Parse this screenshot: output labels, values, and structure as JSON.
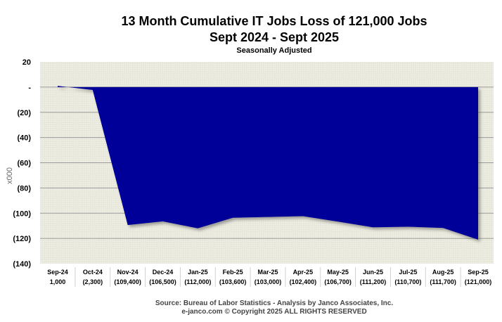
{
  "chart_data": {
    "type": "area",
    "title": "13 Month Cumulative IT Jobs Loss of 121,000 Jobs",
    "subtitle": "Sept 2024 - Sept 2025",
    "subtitle2": "Seasonally  Adjusted",
    "xlabel": "",
    "ylabel": "x000",
    "ylim": [
      -140,
      20
    ],
    "yticks": [
      20,
      0,
      -20,
      -40,
      -60,
      -80,
      -100,
      -120,
      -140
    ],
    "ytick_labels": [
      "20",
      "-",
      "(20)",
      "(40)",
      "(60)",
      "(80)",
      "(100)",
      "(120)",
      "(140)"
    ],
    "grid": true,
    "legend": null,
    "categories": [
      "Sep-24",
      "Oct-24",
      "Nov-24",
      "Dec-24",
      "Jan-25",
      "Feb-25",
      "Mar-25",
      "Apr-25",
      "May-25",
      "Jun-25",
      "Jul-25",
      "Aug-25",
      "Sep-25"
    ],
    "value_labels": [
      "1,000",
      "(2,300)",
      "(109,400)",
      "(106,500)",
      "(112,000)",
      "(103,600)",
      "(103,000)",
      "(102,400)",
      "(106,700)",
      "(111,200)",
      "(110,700)",
      "(111,700)",
      "(121,000)"
    ],
    "values": [
      1.0,
      -2.3,
      -109.4,
      -106.5,
      -112.0,
      -103.6,
      -103.0,
      -102.4,
      -106.7,
      -111.2,
      -110.7,
      -111.7,
      -121.0
    ],
    "colors": {
      "fill": "#000099",
      "plot_bg": "#ecebe0",
      "grid": "#9a9a9a"
    }
  },
  "header": {
    "title": "13 Month Cumulative IT Jobs Loss of 121,000 Jobs",
    "subtitle": "Sept 2024 - Sept 2025",
    "note": "Seasonally  Adjusted"
  },
  "footer": {
    "source": "Source: Bureau of Labor Statistics - Analysis by Janco Associates, Inc.",
    "copyright": "e-janco.com © Copyright 2025  ALL RIGHTS RESERVED"
  }
}
